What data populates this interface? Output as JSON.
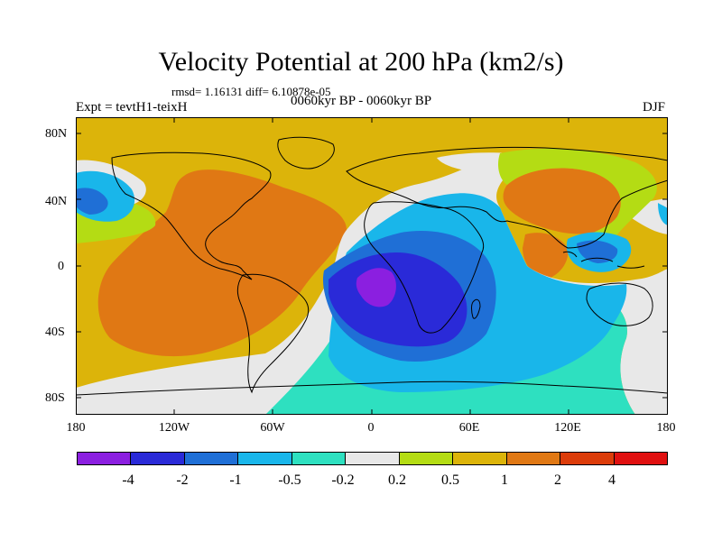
{
  "title": "Velocity Potential at 200 hPa (km2/s)",
  "stats": "rmsd= 1.16131 diff= 6.10878e-05",
  "left_label": "Expt = tevtH1-teixH",
  "center_label": "0060kyr BP - 0060kyr BP",
  "right_label": "DJF",
  "lat_labels": [
    "80N",
    "40N",
    "0",
    "40S",
    "80S"
  ],
  "lon_labels": [
    "180",
    "120W",
    "60W",
    "0",
    "60E",
    "120E",
    "180"
  ],
  "colorbar": {
    "colors": [
      "#8b1fe0",
      "#2a2ad8",
      "#1f6fd6",
      "#19b6ea",
      "#2ee0c0",
      "#e8e8e8",
      "#b4dc14",
      "#dcb40a",
      "#e07814",
      "#dc3c0a",
      "#e01010"
    ],
    "labels": [
      "-4",
      "-2",
      "-1",
      "-0.5",
      "-0.2",
      "0.2",
      "0.5",
      "1",
      "2",
      "4"
    ]
  },
  "regions": {
    "background": "#dcb40a",
    "positive_2": "#e07814",
    "neutral": "#e8e8e8",
    "pos_0_2": "#b4dc14",
    "neg_0_2": "#2ee0c0",
    "neg_0_5": "#19b6ea",
    "neg_1": "#1f6fd6",
    "neg_2": "#2a2ad8",
    "neg_4": "#8b1fe0"
  }
}
